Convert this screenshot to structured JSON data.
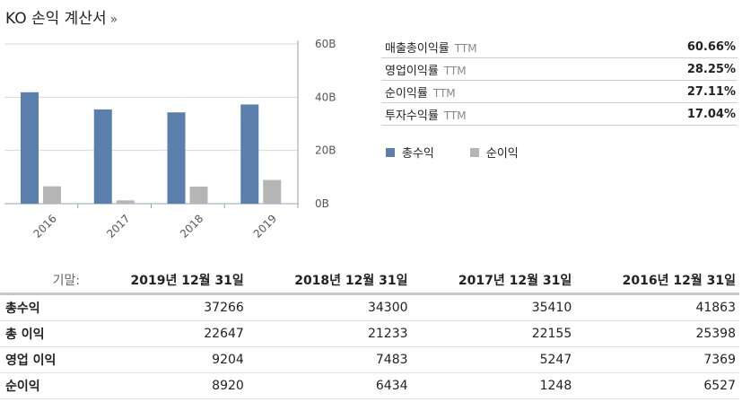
{
  "page": {
    "title": "KO 손익 계산서",
    "title_arrow": "»"
  },
  "ratios": [
    {
      "label": "매출총이익률",
      "ttm": "TTM",
      "value": "60.66%"
    },
    {
      "label": "영업이익률",
      "ttm": "TTM",
      "value": "28.25%"
    },
    {
      "label": "순이익률",
      "ttm": "TTM",
      "value": "27.11%"
    },
    {
      "label": "투자수익률",
      "ttm": "TTM",
      "value": "17.04%"
    }
  ],
  "colors": {
    "total_revenue": "#5b7fad",
    "net_income": "#b5b5b5"
  },
  "chart_data": {
    "type": "bar",
    "categories": [
      "2016",
      "2017",
      "2018",
      "2019"
    ],
    "series": [
      {
        "name": "총수익",
        "values": [
          41.863,
          35.41,
          34.3,
          37.266
        ]
      },
      {
        "name": "순이익",
        "values": [
          6.527,
          1.248,
          6.434,
          8.92
        ]
      }
    ],
    "y_ticks": [
      "60B",
      "40B",
      "20B",
      "0B"
    ],
    "ylim": [
      0,
      60
    ],
    "grid": true,
    "legend_position": "right"
  },
  "table": {
    "period_label": "기말:",
    "columns": [
      "2019년 12월 31일",
      "2018년 12월 31일",
      "2017년 12월 31일",
      "2016년 12월 31일"
    ],
    "rows": [
      {
        "label": "총수익",
        "values": [
          "37266",
          "34300",
          "35410",
          "41863"
        ]
      },
      {
        "label": "총 이익",
        "values": [
          "22647",
          "21233",
          "22155",
          "25398"
        ]
      },
      {
        "label": "영업 이익",
        "values": [
          "9204",
          "7483",
          "5247",
          "7369"
        ]
      },
      {
        "label": "순이익",
        "values": [
          "8920",
          "6434",
          "1248",
          "6527"
        ]
      }
    ]
  }
}
